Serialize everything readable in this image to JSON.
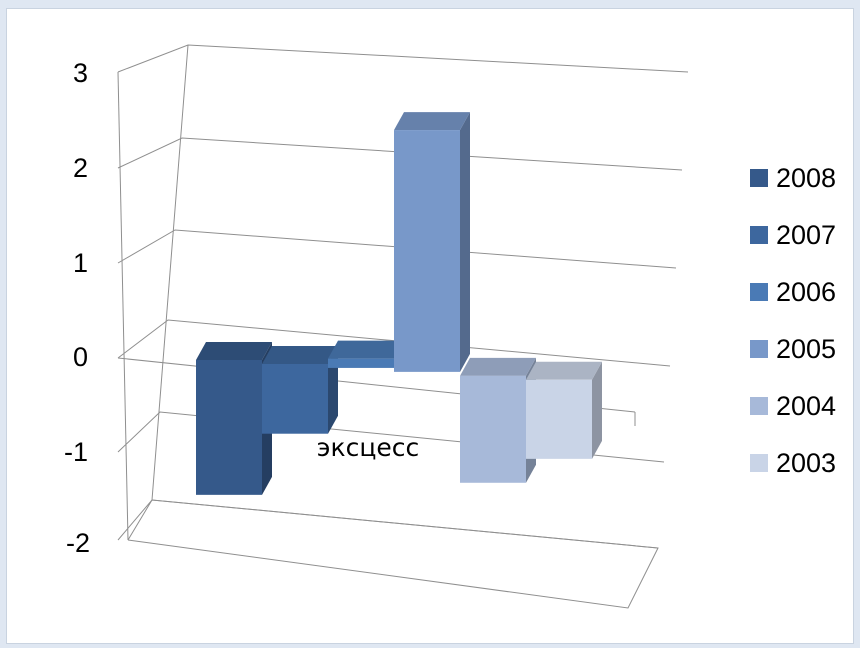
{
  "chart_data": {
    "type": "bar",
    "subtype": "3d-clustered-column",
    "categories": [
      "эксцесс"
    ],
    "series": [
      {
        "name": "2008",
        "values": [
          -1.45
        ],
        "color": "#35598a"
      },
      {
        "name": "2007",
        "values": [
          -0.75
        ],
        "color": "#3d679e"
      },
      {
        "name": "2006",
        "values": [
          0.1
        ],
        "color": "#4a7ab5"
      },
      {
        "name": "2005",
        "values": [
          2.6
        ],
        "color": "#7898c9"
      },
      {
        "name": "2004",
        "values": [
          -1.15
        ],
        "color": "#a7b9d9"
      },
      {
        "name": "2003",
        "values": [
          -0.85
        ],
        "color": "#c9d4e7"
      }
    ],
    "yticks": [
      "3",
      "2",
      "1",
      "0",
      "-1",
      "-2"
    ],
    "ylim": [
      -2,
      3
    ],
    "grid": true,
    "legend_position": "right",
    "title": "",
    "xlabel": "",
    "ylabel": ""
  }
}
